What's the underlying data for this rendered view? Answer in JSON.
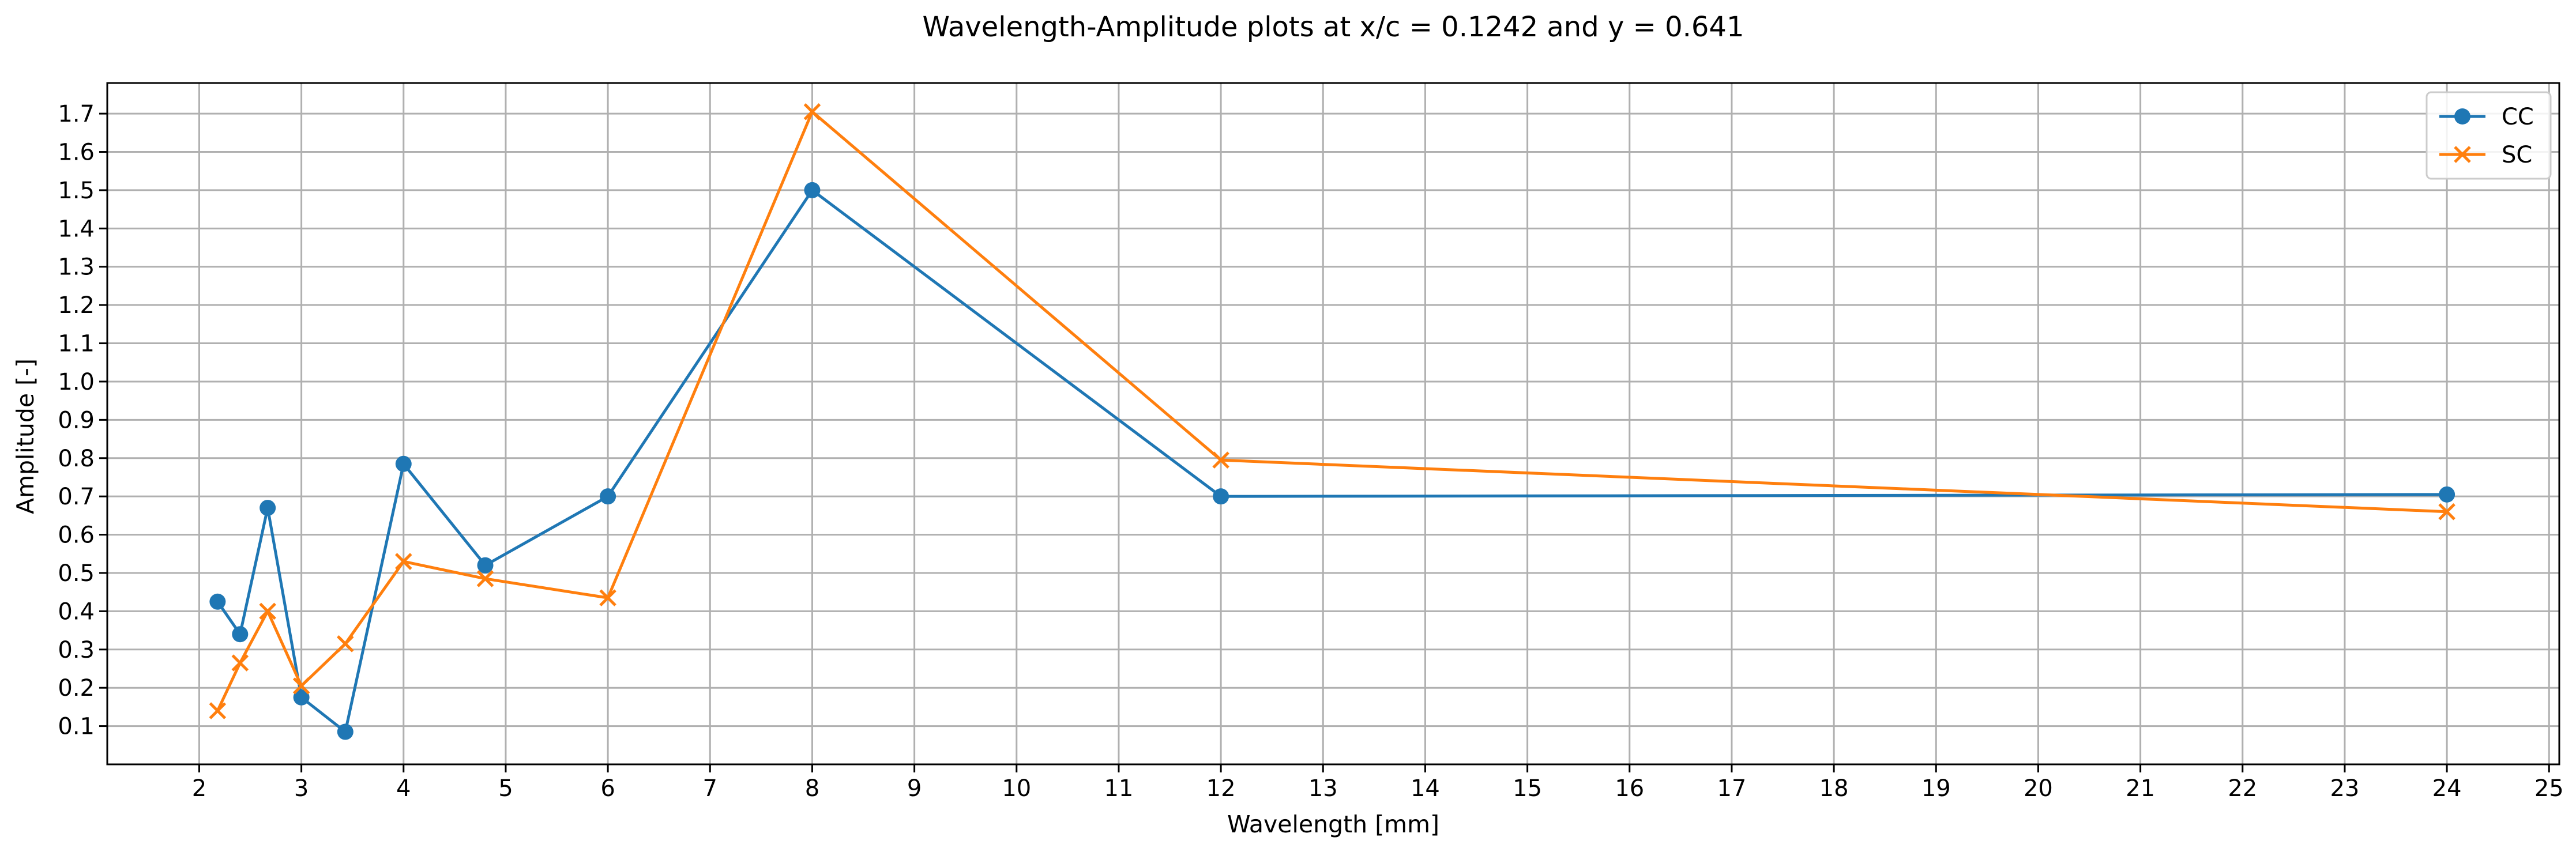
{
  "chart_data": {
    "type": "line",
    "title": "Wavelength-Amplitude plots at x/c = 0.1242 and y = 0.641",
    "xlabel": "Wavelength [mm]",
    "ylabel": "Amplitude [-]",
    "x_ticks": [
      "2",
      "3",
      "4",
      "5",
      "6",
      "7",
      "8",
      "9",
      "10",
      "11",
      "12",
      "13",
      "14",
      "15",
      "16",
      "17",
      "18",
      "19",
      "20",
      "21",
      "22",
      "23",
      "24",
      "25"
    ],
    "y_ticks": [
      "0.1",
      "0.2",
      "0.3",
      "0.4",
      "0.5",
      "0.6",
      "0.7",
      "0.8",
      "0.9",
      "1.0",
      "1.1",
      "1.2",
      "1.3",
      "1.4",
      "1.5",
      "1.6",
      "1.7"
    ],
    "grid": true,
    "legend_position": "top-right",
    "series": [
      {
        "name": "CC",
        "color": "#1f77b4",
        "marker": "circle",
        "x": [
          2.18,
          2.4,
          2.67,
          3.0,
          3.43,
          4.0,
          4.8,
          6.0,
          8.0,
          12.0,
          24.0
        ],
        "y": [
          0.425,
          0.34,
          0.67,
          0.175,
          0.085,
          0.785,
          0.52,
          0.7,
          1.5,
          0.7,
          0.705
        ]
      },
      {
        "name": "SC",
        "color": "#ff7f0e",
        "marker": "x",
        "x": [
          2.18,
          2.4,
          2.67,
          3.0,
          3.43,
          4.0,
          4.8,
          6.0,
          8.0,
          12.0,
          24.0
        ],
        "y": [
          0.14,
          0.265,
          0.4,
          0.205,
          0.315,
          0.53,
          0.485,
          0.435,
          1.705,
          0.795,
          0.66
        ]
      }
    ]
  }
}
